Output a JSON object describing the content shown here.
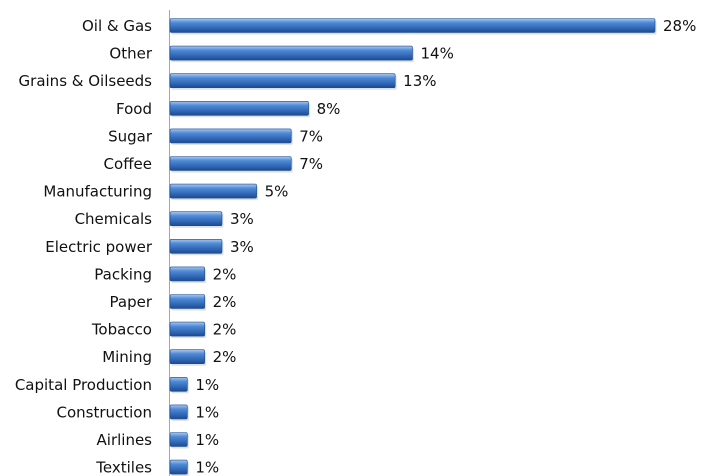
{
  "chart_data": {
    "type": "bar",
    "orientation": "horizontal",
    "categories": [
      "Oil & Gas",
      "Other",
      "Grains & Oilseeds",
      "Food",
      "Sugar",
      "Coffee",
      "Manufacturing",
      "Chemicals",
      "Electric power",
      "Packing",
      "Paper",
      "Tobacco",
      "Mining",
      "Capital Production",
      "Construction",
      "Airlines",
      "Textiles"
    ],
    "values": [
      28,
      14,
      13,
      8,
      7,
      7,
      5,
      3,
      3,
      2,
      2,
      2,
      2,
      1,
      1,
      1,
      1
    ],
    "value_labels": [
      "28%",
      "14%",
      "13%",
      "8%",
      "7%",
      "7%",
      "5%",
      "3%",
      "3%",
      "2%",
      "2%",
      "2%",
      "2%",
      "1%",
      "1%",
      "1%",
      "1%"
    ],
    "bar_color": "#3a78c9",
    "xlim": [
      0,
      28
    ],
    "grid": false,
    "legend": "none"
  }
}
